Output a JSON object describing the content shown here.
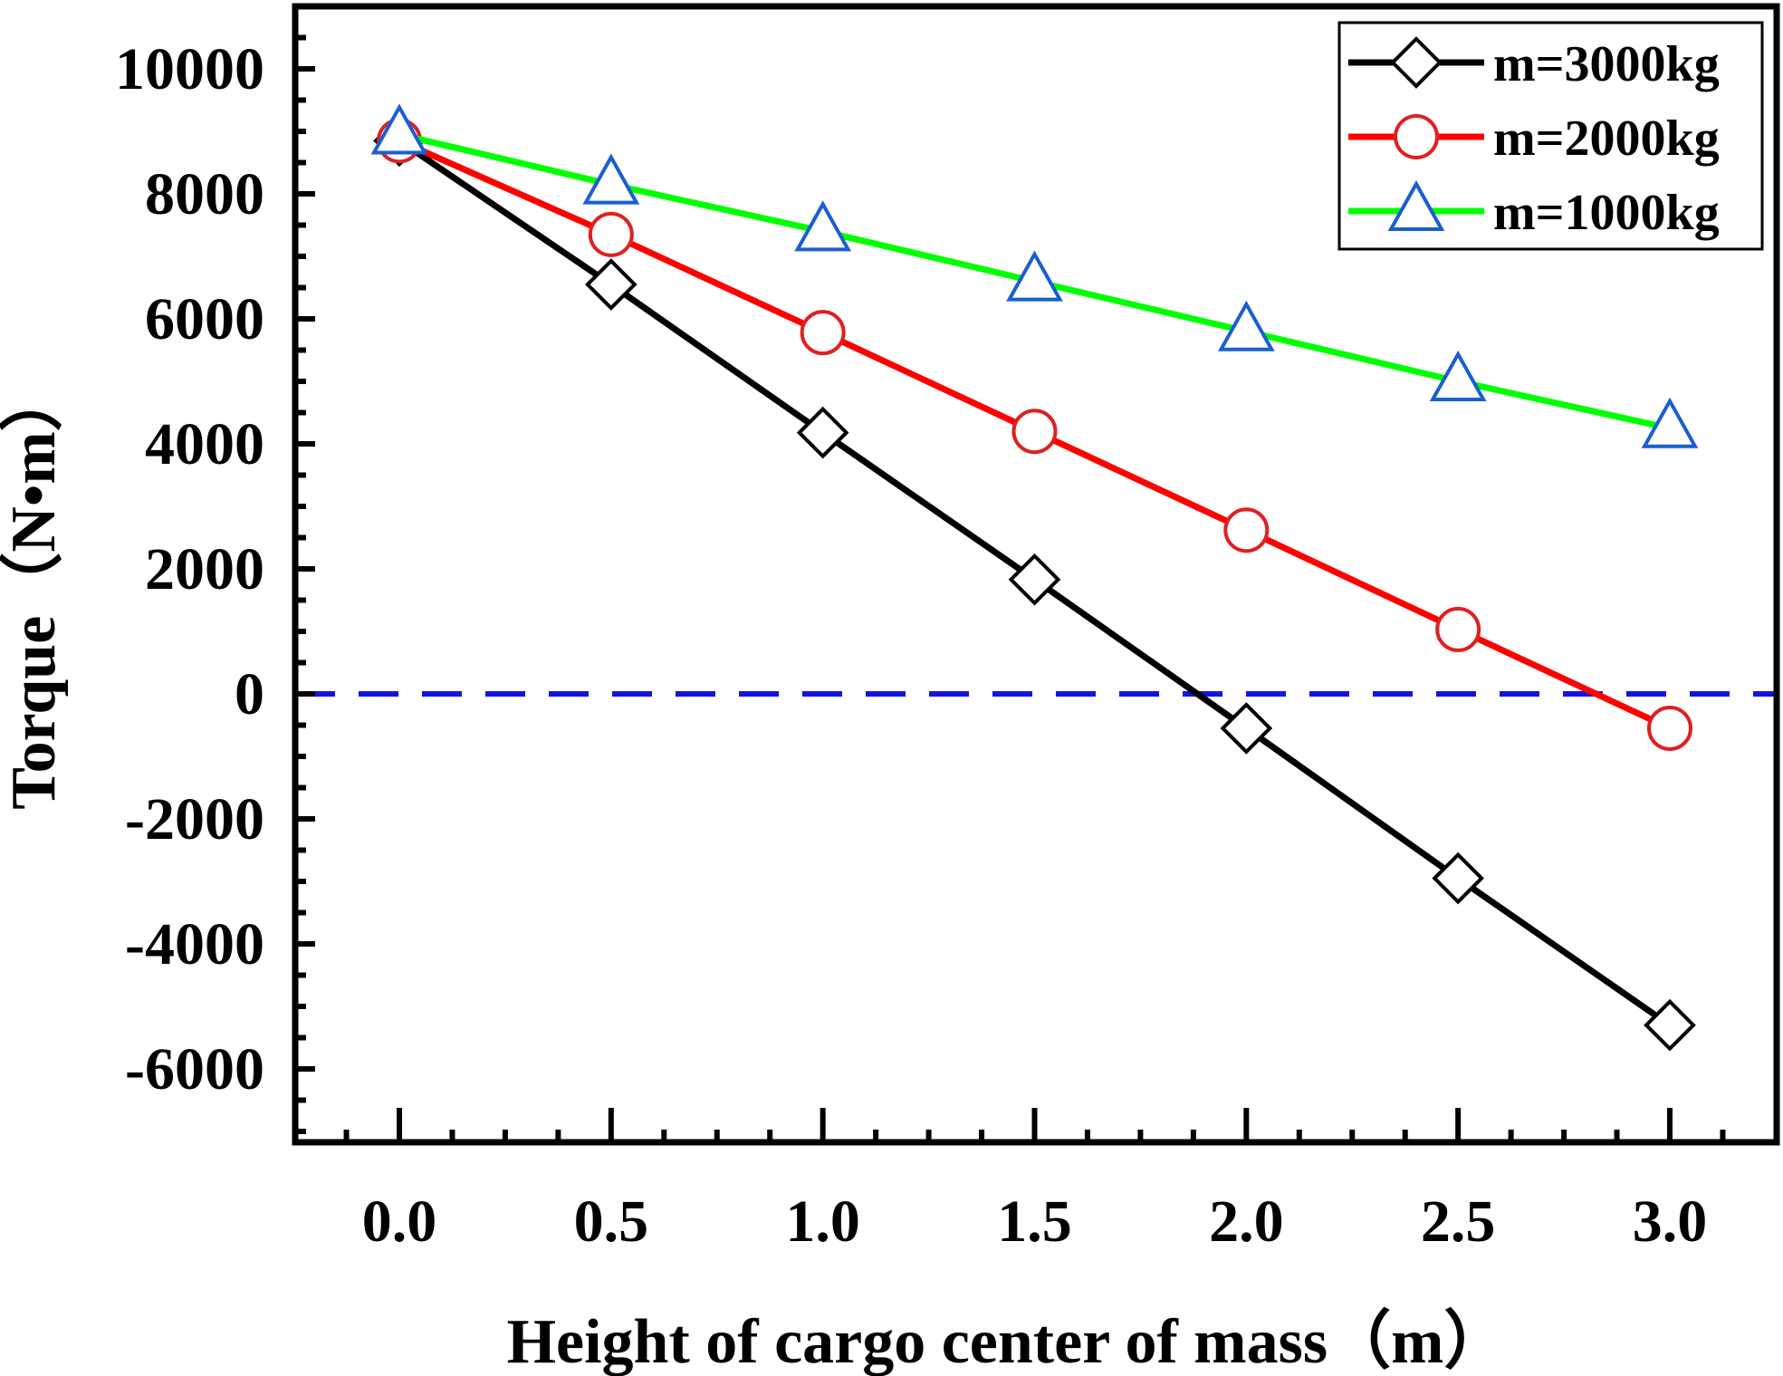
{
  "chart_data": {
    "type": "line",
    "xlabel": "Height of cargo center of mass（m）",
    "ylabel": "Torque（N•m）",
    "xlim": [
      -0.25,
      3.25
    ],
    "ylim": [
      -7000,
      11000
    ],
    "x": [
      0.0,
      0.5,
      1.0,
      1.5,
      2.0,
      2.5,
      3.0
    ],
    "x_tick_labels": [
      "0.0",
      "0.5",
      "1.0",
      "1.5",
      "2.0",
      "2.5",
      "3.0"
    ],
    "y_ticks": [
      10000,
      8000,
      6000,
      4000,
      2000,
      0,
      -2000,
      -4000,
      -6000
    ],
    "y_tick_labels": [
      "10000",
      "8000",
      "6000",
      "4000",
      "2000",
      "0",
      "-2000",
      "-4000",
      "-6000"
    ],
    "grid": false,
    "legend_position": "top-right",
    "reference_line": {
      "y": 0,
      "style": "dashed",
      "color": "#1414e0"
    },
    "series": [
      {
        "name": "m=3000kg",
        "values": [
          8850,
          6550,
          4180,
          1830,
          -550,
          -2950,
          -5300
        ],
        "line_color": "#000000",
        "marker": "diamond",
        "marker_color": "#000000"
      },
      {
        "name": "m=2000kg",
        "values": [
          8850,
          7350,
          5780,
          4200,
          2620,
          1030,
          -550
        ],
        "line_color": "#ff0000",
        "marker": "circle",
        "marker_color": "#e02020"
      },
      {
        "name": "m=1000kg",
        "values": [
          8950,
          8150,
          7400,
          6600,
          5800,
          5000,
          4250
        ],
        "line_color": "#00ff00",
        "marker": "triangle",
        "marker_color": "#1a5fd0"
      }
    ]
  }
}
